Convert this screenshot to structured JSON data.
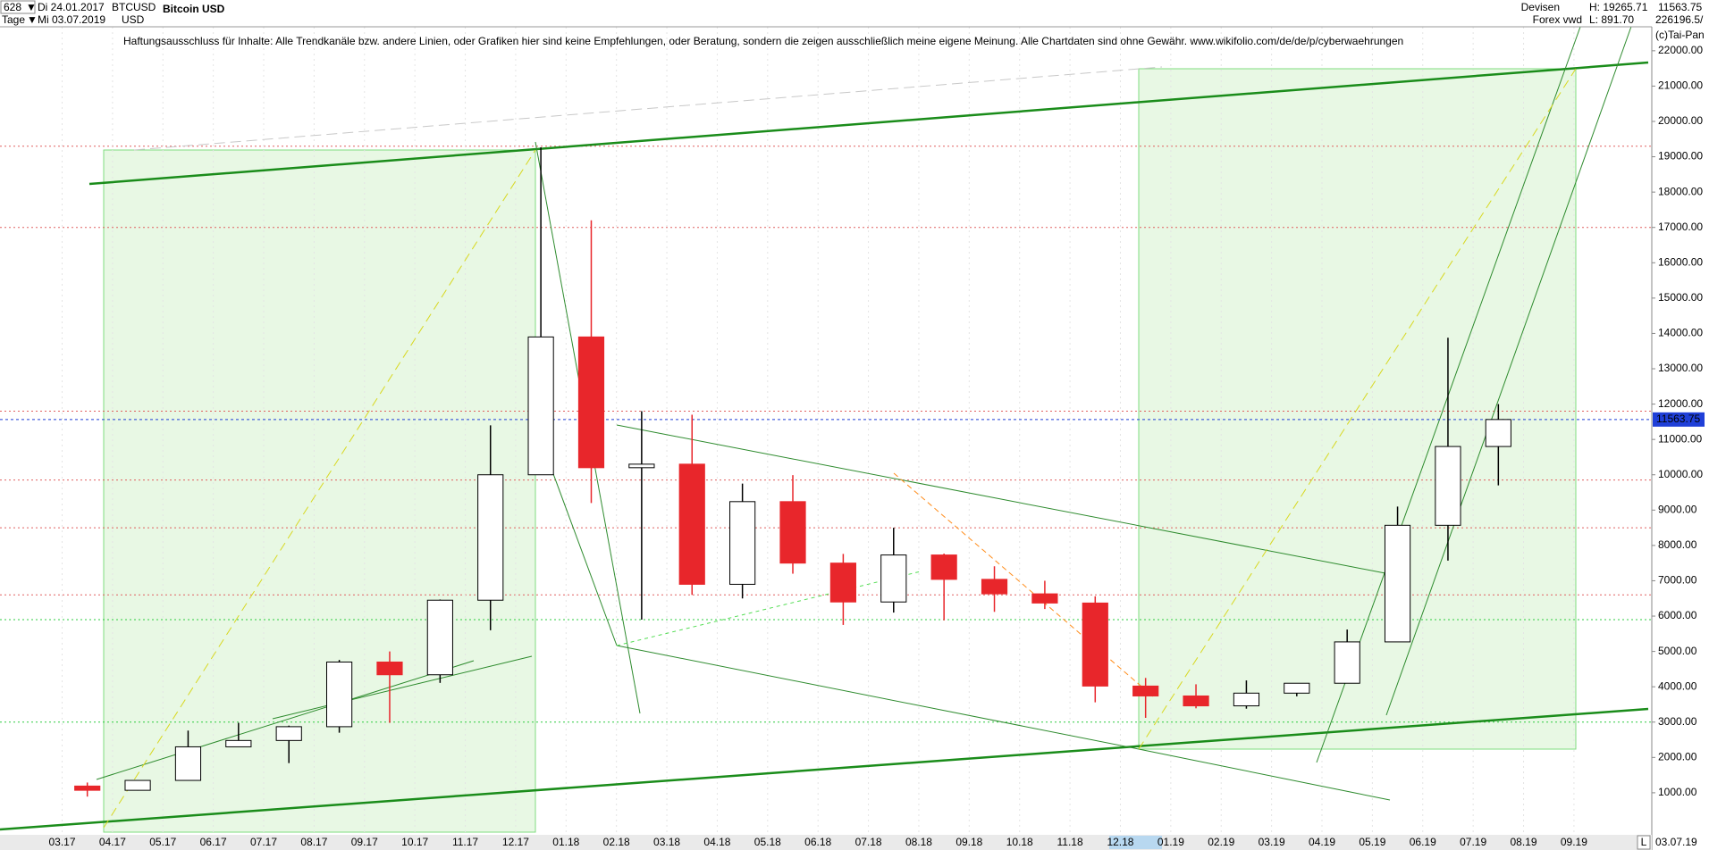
{
  "header": {
    "count": "628",
    "start_date": "Di 24.01.2017",
    "end_date": "Mi 03.07.2019",
    "period": "Tage",
    "symbol": "BTCUSD",
    "currency": "USD",
    "name": "Bitcoin USD",
    "market": "Devisen",
    "source": "Forex vwd",
    "high": "H: 19265.71",
    "low": "L: 891.70",
    "extra": "226196.5/",
    "copyright": "(c)Tai-Pan"
  },
  "chart_data": {
    "type": "candlestick",
    "subtitle": "Haftungsausschluss für Inhalte: Alle Trendkanäle bzw. andere Linien, oder Grafiken hier sind keine Empfehlungen, oder Beratung, sondern die zeigen ausschließlich meine eigene Meinung. Alle Chartdaten sind ohne Gewähr.  www.wikifolio.com/de/de/p/cyberwaehrungen",
    "categories": [
      "03.17",
      "04.17",
      "05.17",
      "06.17",
      "07.17",
      "08.17",
      "09.17",
      "10.17",
      "11.17",
      "12.17",
      "01.18",
      "02.18",
      "03.18",
      "04.18",
      "05.18",
      "06.18",
      "07.18",
      "08.18",
      "09.18",
      "10.18",
      "11.18",
      "12.18",
      "01.19",
      "02.19",
      "03.19",
      "04.19",
      "05.19",
      "06.19",
      "07.19",
      "08.19",
      "09.19"
    ],
    "open": [
      1190,
      1070,
      1350,
      2300,
      2480,
      2870,
      4700,
      4340,
      6450,
      10000,
      13900,
      10200,
      10300,
      6900,
      9240,
      7500,
      6400,
      7730,
      7040,
      6630,
      6370,
      4020,
      3740,
      3460,
      3820,
      4100,
      5270,
      8570,
      10800,
      null,
      null
    ],
    "high": [
      1290,
      1350,
      2760,
      2980,
      2900,
      4760,
      5000,
      6470,
      11400,
      19265.71,
      17200,
      11800,
      11700,
      9750,
      9990,
      7760,
      8500,
      7770,
      7410,
      7000,
      6560,
      4250,
      4070,
      4180,
      4100,
      5620,
      9100,
      13880,
      12000,
      null,
      null
    ],
    "low": [
      891.7,
      1060,
      1350,
      2300,
      1840,
      2700,
      2980,
      4110,
      5600,
      10000,
      9200,
      5900,
      6600,
      6500,
      7200,
      5750,
      6100,
      5880,
      6120,
      6200,
      3560,
      3120,
      3390,
      3380,
      3730,
      4100,
      5270,
      7570,
      9700,
      null,
      null
    ],
    "close": [
      1070,
      1350,
      2300,
      2480,
      2870,
      4700,
      4340,
      6450,
      10000,
      13900,
      10200,
      10300,
      6900,
      9240,
      7500,
      6400,
      7730,
      7040,
      6630,
      6370,
      4020,
      3740,
      3460,
      3820,
      4100,
      5270,
      8570,
      10800,
      11563.75,
      null,
      null
    ],
    "up_color": "#000000",
    "down_color": "#e8262b",
    "last_price": 11563.75,
    "last_date": "03.07.19",
    "ylim": [
      -190,
      22830
    ],
    "yticks": [
      {
        "value": 1000,
        "label": "1000.00"
      },
      {
        "value": 2000,
        "label": "2000.00"
      },
      {
        "value": 3000,
        "label": "3000.00"
      },
      {
        "value": 4000,
        "label": "4000.00"
      },
      {
        "value": 5000,
        "label": "5000.00"
      },
      {
        "value": 6000,
        "label": "6000.00"
      },
      {
        "value": 7000,
        "label": "7000.00"
      },
      {
        "value": 8000,
        "label": "8000.00"
      },
      {
        "value": 9000,
        "label": "9000.00"
      },
      {
        "value": 10000,
        "label": "10000.00"
      },
      {
        "value": 11000,
        "label": "11000.00"
      },
      {
        "value": 12000,
        "label": "12000.00"
      },
      {
        "value": 13000,
        "label": "13000.00"
      },
      {
        "value": 14000,
        "label": "14000.00"
      },
      {
        "value": 15000,
        "label": "15000.00"
      },
      {
        "value": 16000,
        "label": "16000.00"
      },
      {
        "value": 17000,
        "label": "17000.00"
      },
      {
        "value": 18000,
        "label": "18000.00"
      },
      {
        "value": 19000,
        "label": "19000.00"
      },
      {
        "value": 20000,
        "label": "20000.00"
      },
      {
        "value": 21000,
        "label": "21000.00"
      },
      {
        "value": 22000,
        "label": "22000.00"
      }
    ],
    "reference_lines": [
      {
        "value": 19300,
        "color": "#e06060"
      },
      {
        "value": 17000,
        "color": "#e06060"
      },
      {
        "value": 11800,
        "color": "#e06060"
      },
      {
        "value": 9850,
        "color": "#e06060"
      },
      {
        "value": 8500,
        "color": "#e06060"
      },
      {
        "value": 6600,
        "color": "#e06060"
      },
      {
        "value": 5900,
        "color": "#2ecc40"
      },
      {
        "value": 3000,
        "color": "#2ecc40"
      }
    ],
    "last_price_color": "#1f3fd8"
  }
}
